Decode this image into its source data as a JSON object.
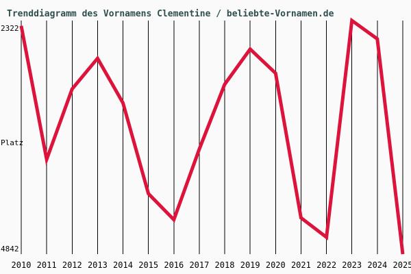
{
  "page": {
    "title": "Trenddiagramm des Vornamens Clementine / beliebte-Vornamen.de"
  },
  "colors": {
    "background": "#FAFAFA",
    "title_text": "#2F4F4F",
    "axis_text": "#000000",
    "gridline": "#000000",
    "line": "#DC143C"
  },
  "y_axis": {
    "top_label": "2322",
    "middle_label": "Platz",
    "bottom_label": "4842"
  },
  "chart_data": {
    "type": "line",
    "title": "Trenddiagramm des Vornamens Clementine / beliebte-Vornamen.de",
    "x": [
      2010,
      2011,
      2012,
      2013,
      2014,
      2015,
      2016,
      2017,
      2018,
      2019,
      2020,
      2021,
      2022,
      2023,
      2024,
      2025
    ],
    "values": [
      2380,
      3820,
      3060,
      2730,
      3210,
      4190,
      4470,
      3710,
      3010,
      2630,
      2890,
      4450,
      4660,
      2322,
      2520,
      4842
    ],
    "ylabel": "Platz",
    "y_axis_inverted": true,
    "ylim": [
      2322,
      4842
    ],
    "grid": "vertical-only",
    "legend": "none",
    "line_color": "#DC143C"
  }
}
